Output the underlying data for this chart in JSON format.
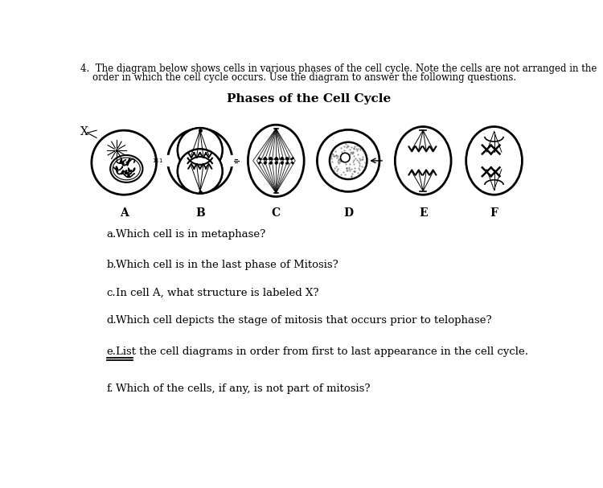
{
  "title": "Phases of the Cell Cycle",
  "header_line1": "4.  The diagram below shows cells in various phases of the cell cycle. Note the cells are not arranged in the",
  "header_line2": "    order in which the cell cycle occurs. Use the diagram to answer the following questions.",
  "cell_labels": [
    "A",
    "B",
    "C",
    "D",
    "E",
    "F"
  ],
  "questions": [
    {
      "letter": "a.",
      "text": "Which cell is in metaphase?"
    },
    {
      "letter": "b.",
      "text": "Which cell is in the last phase of Mitosis?"
    },
    {
      "letter": "c.",
      "text": "In cell A, what structure is labeled X?"
    },
    {
      "letter": "d.",
      "text": "Which cell depicts the stage of mitosis that occurs prior to telophase?"
    },
    {
      "letter": "e.",
      "text": "List the cell diagrams in order from first to last appearance in the cell cycle."
    },
    {
      "letter": "f.",
      "text": "Which of the cells, if any, is not part of mitosis?"
    }
  ],
  "bg_color": "#ffffff",
  "text_color": "#000000",
  "line_color": "#000000"
}
